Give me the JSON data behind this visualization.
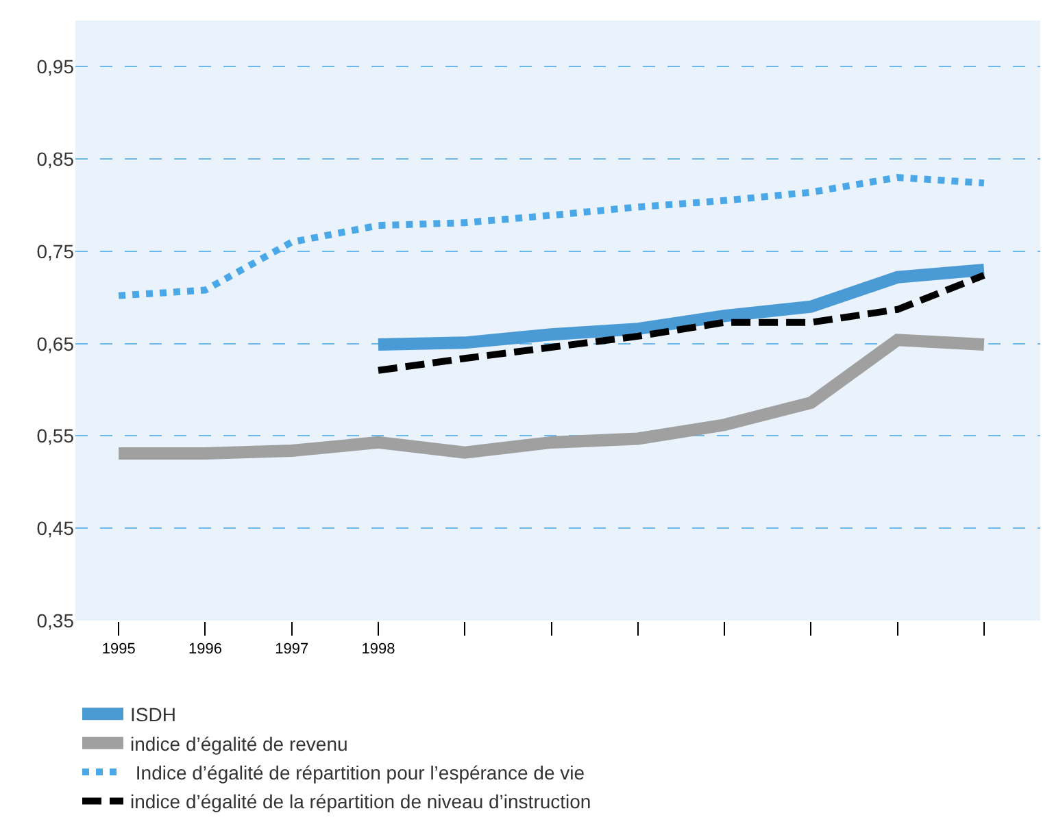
{
  "chart_data": {
    "type": "line",
    "categories": [
      "1995",
      "1996",
      "1997",
      "1998",
      null,
      null,
      null,
      null,
      null,
      null,
      null
    ],
    "series": [
      {
        "name": "ISDH",
        "color": "#4a9ad6",
        "line_style": "solid",
        "values": [
          null,
          null,
          null,
          0.649,
          0.651,
          0.66,
          0.666,
          0.68,
          0.69,
          0.722,
          0.73
        ]
      },
      {
        "name": "indice d’égalité de revenu",
        "color": "#a0a0a0",
        "line_style": "solid",
        "values": [
          0.531,
          0.531,
          0.534,
          0.543,
          0.532,
          0.543,
          0.547,
          0.562,
          0.586,
          0.654,
          0.649
        ]
      },
      {
        "name": " Indice d’égalité de répartition pour l’espérance de vie",
        "color": "#4aa8e8",
        "line_style": "dotted",
        "values": [
          0.702,
          0.708,
          0.76,
          0.778,
          0.781,
          0.789,
          0.798,
          0.805,
          0.814,
          0.83,
          0.824
        ]
      },
      {
        "name": "indice d’égalité de la répartition de niveau d’instruction",
        "color": "#000000",
        "line_style": "dashed",
        "values": [
          null,
          null,
          null,
          0.621,
          0.634,
          0.646,
          0.658,
          0.673,
          0.673,
          0.687,
          0.724
        ]
      }
    ],
    "ylim": [
      0.35,
      1.0
    ],
    "yticks": [
      {
        "value": 0.35,
        "label": "0,35"
      },
      {
        "value": 0.45,
        "label": "0,45"
      },
      {
        "value": 0.55,
        "label": "0,55"
      },
      {
        "value": 0.65,
        "label": "0,65"
      },
      {
        "value": 0.75,
        "label": "0,75"
      },
      {
        "value": 0.85,
        "label": "0,85"
      },
      {
        "value": 0.95,
        "label": "0,95"
      }
    ],
    "grid": "y",
    "legend": "bottom",
    "marker": "none"
  }
}
